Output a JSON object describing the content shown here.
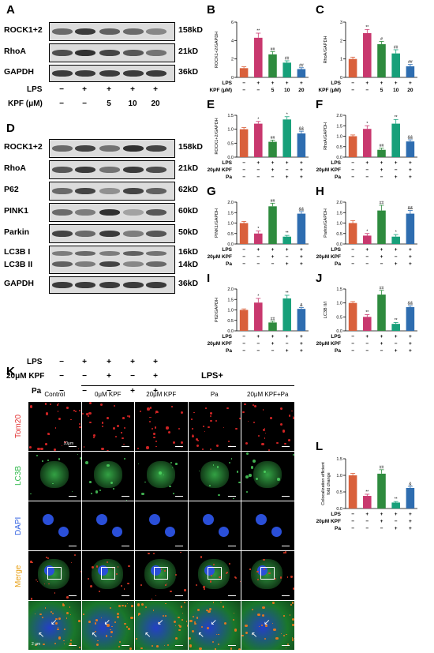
{
  "panels": {
    "A": "A",
    "B": "B",
    "C": "C",
    "D": "D",
    "E": "E",
    "F": "F",
    "G": "G",
    "H": "H",
    "I": "I",
    "J": "J",
    "K": "K",
    "L": "L"
  },
  "blotA": {
    "rows": [
      "ROCK1+2",
      "RhoA",
      "GAPDH"
    ],
    "kd": [
      "158kD",
      "21kD",
      "36kD"
    ],
    "cond_labels": [
      "LPS",
      "KPF (μM)"
    ],
    "lps": [
      "−",
      "+",
      "+",
      "+",
      "+"
    ],
    "kpf": [
      "−",
      "−",
      "5",
      "10",
      "20"
    ]
  },
  "blotD": {
    "rows": [
      "ROCK1+2",
      "RhoA",
      "P62",
      "PINK1",
      "Parkin",
      "LC3B I",
      "LC3B II",
      "GAPDH"
    ],
    "kd": [
      "158kD",
      "21kD",
      "62kD",
      "60kD",
      "50kD",
      "16kD",
      "14kD",
      "36kD"
    ],
    "cond_labels": [
      "LPS",
      "20μM KPF",
      "Pa"
    ],
    "lps": [
      "−",
      "+",
      "+",
      "+",
      "+"
    ],
    "kpf": [
      "−",
      "−",
      "+",
      "−",
      "+"
    ],
    "pa": [
      "−",
      "−",
      "−",
      "+",
      "+"
    ]
  },
  "colors": {
    "g1": "#d9603b",
    "g2": "#c8386e",
    "g3": "#2e8b3e",
    "g4": "#17a07a",
    "g5": "#2e6db0"
  },
  "chart_data": [
    {
      "panel": "B",
      "type": "bar",
      "ylabel": "ROCK1+2/GAPDH",
      "ylim": [
        0,
        6
      ],
      "yticks": [
        "0",
        "2",
        "4",
        "6"
      ],
      "values": [
        1.0,
        4.3,
        2.5,
        1.6,
        0.9
      ],
      "errors": [
        0.15,
        0.5,
        0.3,
        0.2,
        0.15
      ],
      "sig": [
        "",
        "**",
        "##",
        "##",
        "##"
      ],
      "colors": [
        "#d9603b",
        "#c8386e",
        "#2e8b3e",
        "#17a07a",
        "#2e6db0"
      ],
      "rows": [
        {
          "label": "LPS",
          "values": [
            "−",
            "+",
            "+",
            "+",
            "+"
          ]
        },
        {
          "label": "KPF (μM)",
          "values": [
            "−",
            "−",
            "5",
            "10",
            "20"
          ]
        }
      ]
    },
    {
      "panel": "C",
      "type": "bar",
      "ylabel": "RhoA/GAPDH",
      "ylim": [
        0,
        3
      ],
      "yticks": [
        "0",
        "1",
        "2",
        "3"
      ],
      "values": [
        1.0,
        2.4,
        1.8,
        1.3,
        0.6
      ],
      "errors": [
        0.1,
        0.2,
        0.15,
        0.2,
        0.1
      ],
      "sig": [
        "",
        "**",
        "#",
        "##",
        "##"
      ],
      "colors": [
        "#d9603b",
        "#c8386e",
        "#2e8b3e",
        "#17a07a",
        "#2e6db0"
      ],
      "rows": [
        {
          "label": "LPS",
          "values": [
            "−",
            "+",
            "+",
            "+",
            "+"
          ]
        },
        {
          "label": "KPF (μM)",
          "values": [
            "−",
            "−",
            "5",
            "10",
            "20"
          ]
        }
      ]
    },
    {
      "panel": "E",
      "type": "bar",
      "ylabel": "ROCK1+2/GAPDH",
      "ylim": [
        0,
        1.5
      ],
      "yticks": [
        "0.0",
        "0.5",
        "1.0",
        "1.5"
      ],
      "values": [
        1.0,
        1.2,
        0.55,
        1.35,
        0.85
      ],
      "errors": [
        0.06,
        0.08,
        0.06,
        0.1,
        0.08
      ],
      "sig": [
        "",
        "*",
        "##",
        "*",
        "&&"
      ],
      "colors": [
        "#d9603b",
        "#c8386e",
        "#2e8b3e",
        "#17a07a",
        "#2e6db0"
      ],
      "rows": [
        {
          "label": "LPS",
          "values": [
            "−",
            "+",
            "+",
            "+",
            "+"
          ]
        },
        {
          "label": "20μM KPF",
          "values": [
            "−",
            "−",
            "+",
            "−",
            "+"
          ]
        },
        {
          "label": "Pa",
          "values": [
            "−",
            "−",
            "−",
            "+",
            "+"
          ]
        }
      ]
    },
    {
      "panel": "F",
      "type": "bar",
      "ylabel": "RhoA/GAPDH",
      "ylim": [
        0,
        2.0
      ],
      "yticks": [
        "0.0",
        "0.5",
        "1.0",
        "1.5",
        "2.0"
      ],
      "values": [
        1.0,
        1.35,
        0.35,
        1.6,
        0.75
      ],
      "errors": [
        0.06,
        0.15,
        0.08,
        0.2,
        0.08
      ],
      "sig": [
        "",
        "*",
        "##",
        "**",
        "&&"
      ],
      "colors": [
        "#d9603b",
        "#c8386e",
        "#2e8b3e",
        "#17a07a",
        "#2e6db0"
      ],
      "rows": [
        {
          "label": "LPS",
          "values": [
            "−",
            "+",
            "+",
            "+",
            "+"
          ]
        },
        {
          "label": "20μM KPF",
          "values": [
            "−",
            "−",
            "+",
            "−",
            "+"
          ]
        },
        {
          "label": "Pa",
          "values": [
            "−",
            "−",
            "−",
            "+",
            "+"
          ]
        }
      ]
    },
    {
      "panel": "G",
      "type": "bar",
      "ylabel": "PINK1/GAPDH",
      "ylim": [
        0,
        2.0
      ],
      "yticks": [
        "0.0",
        "0.5",
        "1.0",
        "1.5",
        "2.0"
      ],
      "values": [
        1.0,
        0.5,
        1.8,
        0.35,
        1.45
      ],
      "errors": [
        0.08,
        0.12,
        0.15,
        0.06,
        0.1
      ],
      "sig": [
        "",
        "*",
        "##",
        "**",
        "&&"
      ],
      "colors": [
        "#d9603b",
        "#c8386e",
        "#2e8b3e",
        "#17a07a",
        "#2e6db0"
      ],
      "rows": [
        {
          "label": "LPS",
          "values": [
            "−",
            "+",
            "+",
            "+",
            "+"
          ]
        },
        {
          "label": "20μM KPF",
          "values": [
            "−",
            "−",
            "+",
            "−",
            "+"
          ]
        },
        {
          "label": "Pa",
          "values": [
            "−",
            "−",
            "−",
            "+",
            "+"
          ]
        }
      ]
    },
    {
      "panel": "H",
      "type": "bar",
      "ylabel": "Parkin/GAPDH",
      "ylim": [
        0,
        2.0
      ],
      "yticks": [
        "0.0",
        "0.5",
        "1.0",
        "1.5",
        "2.0"
      ],
      "values": [
        1.0,
        0.4,
        1.6,
        0.35,
        1.45
      ],
      "errors": [
        0.12,
        0.1,
        0.25,
        0.1,
        0.15
      ],
      "sig": [
        "",
        "*",
        "##",
        "*",
        "&&"
      ],
      "colors": [
        "#d9603b",
        "#c8386e",
        "#2e8b3e",
        "#17a07a",
        "#2e6db0"
      ],
      "rows": [
        {
          "label": "LPS",
          "values": [
            "−",
            "+",
            "+",
            "+",
            "+"
          ]
        },
        {
          "label": "20μM KPF",
          "values": [
            "−",
            "−",
            "+",
            "−",
            "+"
          ]
        },
        {
          "label": "Pa",
          "values": [
            "−",
            "−",
            "−",
            "+",
            "+"
          ]
        }
      ]
    },
    {
      "panel": "I",
      "type": "bar",
      "ylabel": "P62/GAPDH",
      "ylim": [
        0,
        2.0
      ],
      "yticks": [
        "0.0",
        "0.5",
        "1.0",
        "1.5",
        "2.0"
      ],
      "values": [
        1.0,
        1.35,
        0.4,
        1.55,
        1.05
      ],
      "errors": [
        0.05,
        0.2,
        0.06,
        0.15,
        0.06
      ],
      "sig": [
        "",
        "*",
        "##",
        "**",
        "&"
      ],
      "colors": [
        "#d9603b",
        "#c8386e",
        "#2e8b3e",
        "#17a07a",
        "#2e6db0"
      ],
      "rows": [
        {
          "label": "LPS",
          "values": [
            "−",
            "+",
            "+",
            "+",
            "+"
          ]
        },
        {
          "label": "20μM KPF",
          "values": [
            "−",
            "−",
            "+",
            "−",
            "+"
          ]
        },
        {
          "label": "Pa",
          "values": [
            "−",
            "−",
            "−",
            "+",
            "+"
          ]
        }
      ]
    },
    {
      "panel": "J",
      "type": "bar",
      "ylabel": "LC3B II/I",
      "ylim": [
        0,
        1.5
      ],
      "yticks": [
        "0.0",
        "0.5",
        "1.0",
        "1.5"
      ],
      "values": [
        1.0,
        0.5,
        1.3,
        0.25,
        0.85
      ],
      "errors": [
        0.05,
        0.08,
        0.15,
        0.05,
        0.05
      ],
      "sig": [
        "",
        "**",
        "##",
        "**",
        "&&"
      ],
      "colors": [
        "#d9603b",
        "#c8386e",
        "#2e8b3e",
        "#17a07a",
        "#2e6db0"
      ],
      "rows": [
        {
          "label": "LPS",
          "values": [
            "−",
            "+",
            "+",
            "+",
            "+"
          ]
        },
        {
          "label": "20μM KPF",
          "values": [
            "−",
            "−",
            "+",
            "−",
            "+"
          ]
        },
        {
          "label": "Pa",
          "values": [
            "−",
            "−",
            "−",
            "+",
            "+"
          ]
        }
      ]
    },
    {
      "panel": "L",
      "type": "bar",
      "ylabel": "Colocalization efficient fold change",
      "ylim": [
        0,
        1.5
      ],
      "yticks": [
        "0.0",
        "0.5",
        "1.0",
        "1.5"
      ],
      "values": [
        1.0,
        0.38,
        1.05,
        0.18,
        0.62
      ],
      "errors": [
        0.06,
        0.05,
        0.12,
        0.03,
        0.05
      ],
      "sig": [
        "",
        "**",
        "##",
        "**",
        "&"
      ],
      "colors": [
        "#d9603b",
        "#c8386e",
        "#2e8b3e",
        "#17a07a",
        "#2e6db0"
      ],
      "rows": [
        {
          "label": "LPS",
          "values": [
            "−",
            "+",
            "+",
            "+",
            "+"
          ]
        },
        {
          "label": "20μM KPF",
          "values": [
            "−",
            "−",
            "+",
            "−",
            "+"
          ]
        },
        {
          "label": "Pa",
          "values": [
            "−",
            "−",
            "−",
            "+",
            "+"
          ]
        }
      ]
    }
  ],
  "imaging": {
    "lps_header": "LPS+",
    "columns": [
      "Control",
      "0μM KPF",
      "20μM KPF",
      "Pa",
      "20μM KPF+Pa"
    ],
    "rows": [
      "Tom20",
      "LC3B",
      "DAPI",
      "Merge"
    ],
    "row_colors": [
      "#e23030",
      "#2fb84a",
      "#2f5fe0",
      "#e8a21a"
    ],
    "scale_main": "10μm",
    "scale_zoom": "2 μm"
  }
}
